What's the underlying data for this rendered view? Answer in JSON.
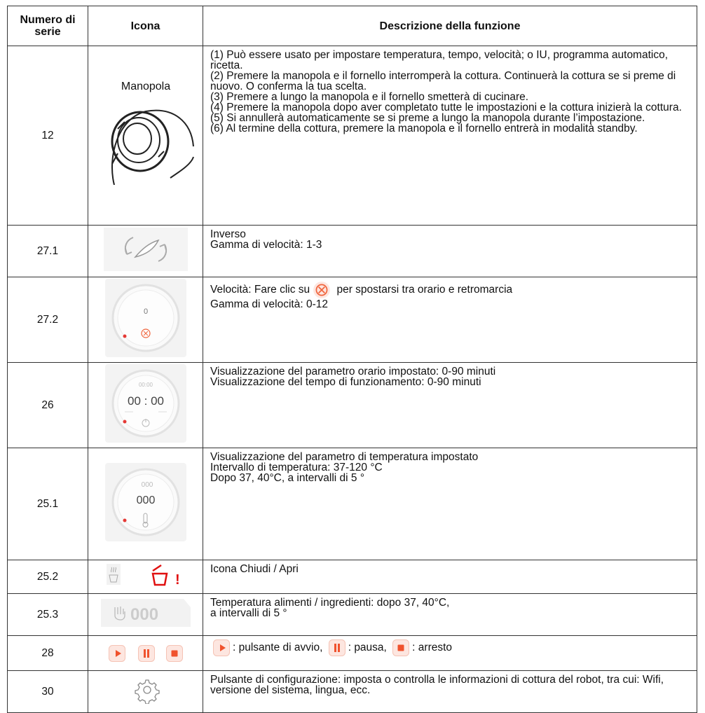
{
  "header": {
    "serial": "Numero di serie",
    "icon": "Icona",
    "description": "Descrizione della funzione"
  },
  "rows": [
    {
      "serial": "12",
      "icon_texts": [
        "Manopola"
      ],
      "description": [
        "(1) Può essere usato per impostare temperatura, tempo, velocità; o IU, programma automatico, ricetta.",
        "(2) Premere la manopola e il fornello interromperà la cottura. Continuerà la cottura se si preme di nuovo. O conferma la tua scelta.",
        "(3) Premere a lungo la manopola e il fornello smetterà di cucinare.",
        "(4) Premere la manopola dopo aver completato tutte le impostazioni e la cottura inizierà la cottura.",
        "(5) Si annullerà automaticamente se si preme a lungo la manopola durante l’impostazione.",
        "(6) Al termine della cottura, premere la manopola e il fornello entrerà in modalità standby."
      ]
    },
    {
      "serial": "27.1",
      "description": [
        "Inverso",
        "Gamma di velocità: 1-3"
      ]
    },
    {
      "serial": "27.2",
      "icon_texts": [
        "0"
      ],
      "description": [
        [
          "Velocità: Fare clic su",
          "per spostarsi tra orario e retromarcia"
        ],
        "Gamma di velocità: 0-12"
      ]
    },
    {
      "serial": "26",
      "icon_texts": [
        "00:00",
        "00 : 00"
      ],
      "description": [
        "Visualizzazione del parametro orario impostato: 0-90 minuti",
        "Visualizzazione del tempo di funzionamento: 0-90 minuti"
      ]
    },
    {
      "serial": "25.1",
      "icon_texts": [
        "000",
        "000"
      ],
      "description": [
        "Visualizzazione del parametro di temperatura impostato",
        "Intervallo di temperatura: 37-120 °C",
        "Dopo 37, 40°C, a intervalli di 5 °"
      ]
    },
    {
      "serial": "25.2",
      "icon_texts": [
        "!"
      ],
      "description": [
        "Icona Chiudi / Apri"
      ]
    },
    {
      "serial": "25.3",
      "icon_texts": [
        "000"
      ],
      "description": [
        "Temperatura alimenti / ingredienti: dopo 37, 40°C,",
        "a intervalli di 5 °"
      ]
    },
    {
      "serial": "28",
      "description": [
        [
          ": pulsante di avvio,",
          ": pausa,",
          ": arresto"
        ]
      ]
    },
    {
      "serial": "30",
      "description": [
        "Pulsante di configurazione: imposta o controlla le informazioni di cottura del robot, tra cui: Wifi, versione del sistema, lingua, ecc."
      ]
    }
  ]
}
